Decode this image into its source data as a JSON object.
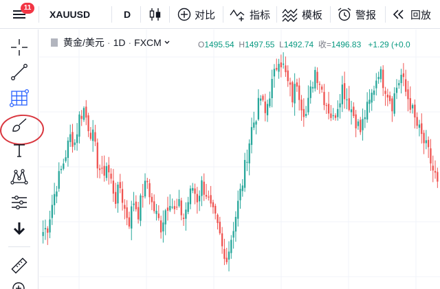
{
  "toolbar": {
    "notification_count": "11",
    "symbol": "XAUUSD",
    "interval": "D",
    "compare_label": "对比",
    "indicators_label": "指标",
    "templates_label": "模板",
    "alert_label": "警报",
    "replay_label": "回放"
  },
  "legend": {
    "title": "黄金/美元",
    "interval": "1D",
    "exchange": "FXCM",
    "open_label": "O",
    "open": "1495.54",
    "high_label": "H",
    "high": "1497.55",
    "low_label": "L",
    "low": "1492.74",
    "close_label": "收=",
    "close": "1496.83",
    "change": "+1.29",
    "change_pct": "(+0.0"
  },
  "left_tools": [
    {
      "icon": "crosshair-icon"
    },
    {
      "icon": "trend-line-icon"
    },
    {
      "icon": "fib-grid-icon",
      "highlighted": true
    },
    {
      "icon": "brush-icon"
    },
    {
      "icon": "text-icon"
    },
    {
      "icon": "pattern-icon"
    },
    {
      "icon": "forecast-icon"
    },
    {
      "icon": "arrow-down-icon"
    },
    {
      "icon": "ruler-icon"
    },
    {
      "icon": "zoom-icon"
    }
  ],
  "colors": {
    "up": "#26a69a",
    "down": "#ef5350",
    "grid": "#f0f3fa",
    "highlight": "#d9363e",
    "accent": "#2962ff"
  },
  "chart_data": {
    "type": "candlestick",
    "title": "",
    "xlabel": "",
    "ylabel": "",
    "closes": [
      1478,
      1480,
      1488,
      1495,
      1500,
      1506,
      1512,
      1510,
      1519,
      1522,
      1516,
      1512,
      1503,
      1498,
      1502,
      1496,
      1490,
      1494,
      1486,
      1482,
      1489,
      1485,
      1492,
      1496,
      1488,
      1484,
      1480,
      1486,
      1490,
      1485,
      1487,
      1483,
      1489,
      1494,
      1490,
      1495,
      1492,
      1486,
      1482,
      1476,
      1468,
      1472,
      1480,
      1488,
      1496,
      1506,
      1515,
      1520,
      1526,
      1520,
      1528,
      1534,
      1541,
      1537,
      1531,
      1526,
      1532,
      1524,
      1520,
      1528,
      1536,
      1532,
      1526,
      1522,
      1518,
      1524,
      1530,
      1526,
      1522,
      1518,
      1514,
      1520,
      1524,
      1530,
      1536,
      1532,
      1528,
      1524,
      1530,
      1534,
      1528,
      1524,
      1518,
      1514,
      1510,
      1506,
      1500,
      1496
    ]
  }
}
